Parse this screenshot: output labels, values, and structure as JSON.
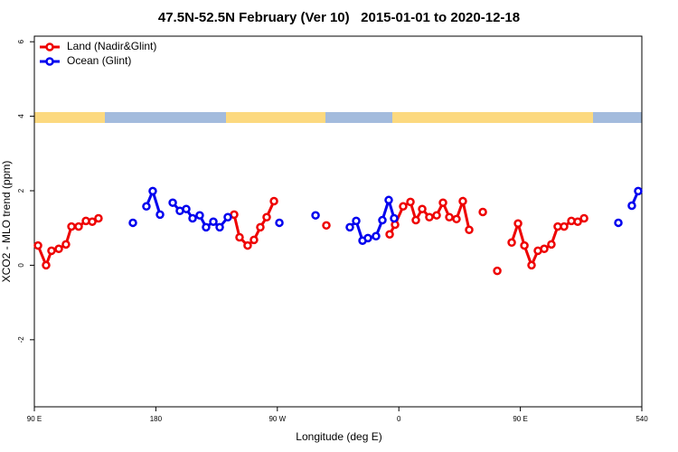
{
  "chart_data": {
    "type": "line",
    "title": "47.5N-52.5N February (Ver 10)   2015-01-01 to 2020-12-18",
    "x_label": "Longitude (deg E)",
    "y_label": "XCO2 - MLO trend (ppm)",
    "xlim": [
      90,
      540
    ],
    "xticks": [
      {
        "value": 90,
        "label": "90 E"
      },
      180,
      {
        "value": 270,
        "label": "90 W"
      },
      {
        "value": 360,
        "label": "0"
      },
      {
        "value": 450,
        "label": "90 E"
      },
      540
    ],
    "ylim": [
      -3.8,
      6.15
    ],
    "yticks": [
      6,
      4,
      2,
      0,
      -2
    ],
    "legend": "top-left",
    "series": [
      {
        "name": "Land (Nadir&Glint)",
        "color": "#ee0000",
        "x": [
          92.7,
          98.7,
          102.7,
          108.1,
          113.4,
          117.5,
          122.8,
          128.2,
          132.9,
          137.5,
          null,
          238.0,
          242.0,
          248.0,
          252.7,
          257.4,
          262.1,
          267.5,
          null,
          306.3,
          null,
          353.2,
          357.2,
          363.2,
          368.6,
          372.6,
          377.3,
          382.6,
          388.0,
          392.7,
          397.4,
          402.7,
          407.4,
          412.1,
          null,
          422.2,
          null,
          432.9,
          null,
          443.6,
          448.3,
          453.0,
          458.3,
          463.0,
          467.7,
          473.0,
          477.7,
          482.4,
          487.8,
          492.5,
          497.2
        ],
        "values": [
          0.53,
          0,
          0.39,
          0.44,
          0.56,
          1.04,
          1.04,
          1.19,
          1.17,
          1.26,
          null,
          1.36,
          0.75,
          0.53,
          0.68,
          1.02,
          1.29,
          1.72,
          null,
          1.07,
          null,
          0.83,
          1.09,
          1.58,
          1.7,
          1.21,
          1.51,
          1.29,
          1.34,
          1.68,
          1.29,
          1.24,
          1.72,
          0.95,
          null,
          1.43,
          null,
          -0.15,
          null,
          0.61,
          1.12,
          0.53,
          0,
          0.39,
          0.44,
          0.56,
          1.04,
          1.04,
          1.19,
          1.17,
          1.26
        ]
      },
      {
        "name": "Ocean (Glint)",
        "color": "#0000ee",
        "x": [
          163.0,
          null,
          173.0,
          177.7,
          183.1,
          null,
          192.5,
          197.8,
          202.5,
          207.2,
          212.5,
          217.2,
          222.6,
          227.3,
          233.3,
          null,
          271.5,
          null,
          298.3,
          null,
          323.7,
          328.4,
          333.1,
          337.1,
          343.1,
          347.8,
          352.5,
          356.5,
          null,
          522.6,
          null,
          532.6,
          537.3
        ],
        "values": [
          1.14,
          null,
          1.58,
          1.99,
          1.36,
          null,
          1.68,
          1.46,
          1.51,
          1.26,
          1.34,
          1.02,
          1.17,
          1.02,
          1.29,
          null,
          1.14,
          null,
          1.34,
          null,
          1.02,
          1.19,
          0.66,
          0.73,
          0.78,
          1.21,
          1.75,
          1.26,
          null,
          1.14,
          null,
          1.6,
          1.99
        ]
      }
    ]
  }
}
